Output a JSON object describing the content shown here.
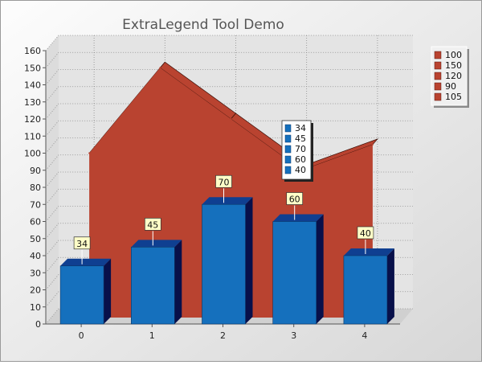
{
  "chart_data": {
    "type": "bar",
    "title": "ExtraLegend Tool Demo",
    "categories": [
      "0",
      "1",
      "2",
      "3",
      "4"
    ],
    "series": [
      {
        "values": [
          100,
          150,
          120,
          90,
          105
        ],
        "render": "area",
        "color": "#b94330"
      },
      {
        "values": [
          34,
          45,
          70,
          60,
          40
        ],
        "render": "bar",
        "color": "#1570bd",
        "data_labels": true
      }
    ],
    "ylim": [
      0,
      160
    ],
    "ytick_step": 10,
    "grid": true,
    "legend": {
      "placement": "right",
      "entries": [
        "100",
        "150",
        "120",
        "90",
        "105"
      ]
    },
    "extra_legend": {
      "placement": "center",
      "entries": [
        "34",
        "45",
        "70",
        "60",
        "40"
      ]
    },
    "colors": {
      "background_top": "#fbfbfb",
      "background_bottom": "#d9d9d9",
      "plot_wall": "#e4e4e4",
      "bar_top": "#0f3f91",
      "bar_side": "#08104a",
      "label_fill": "#ffffc8"
    }
  }
}
